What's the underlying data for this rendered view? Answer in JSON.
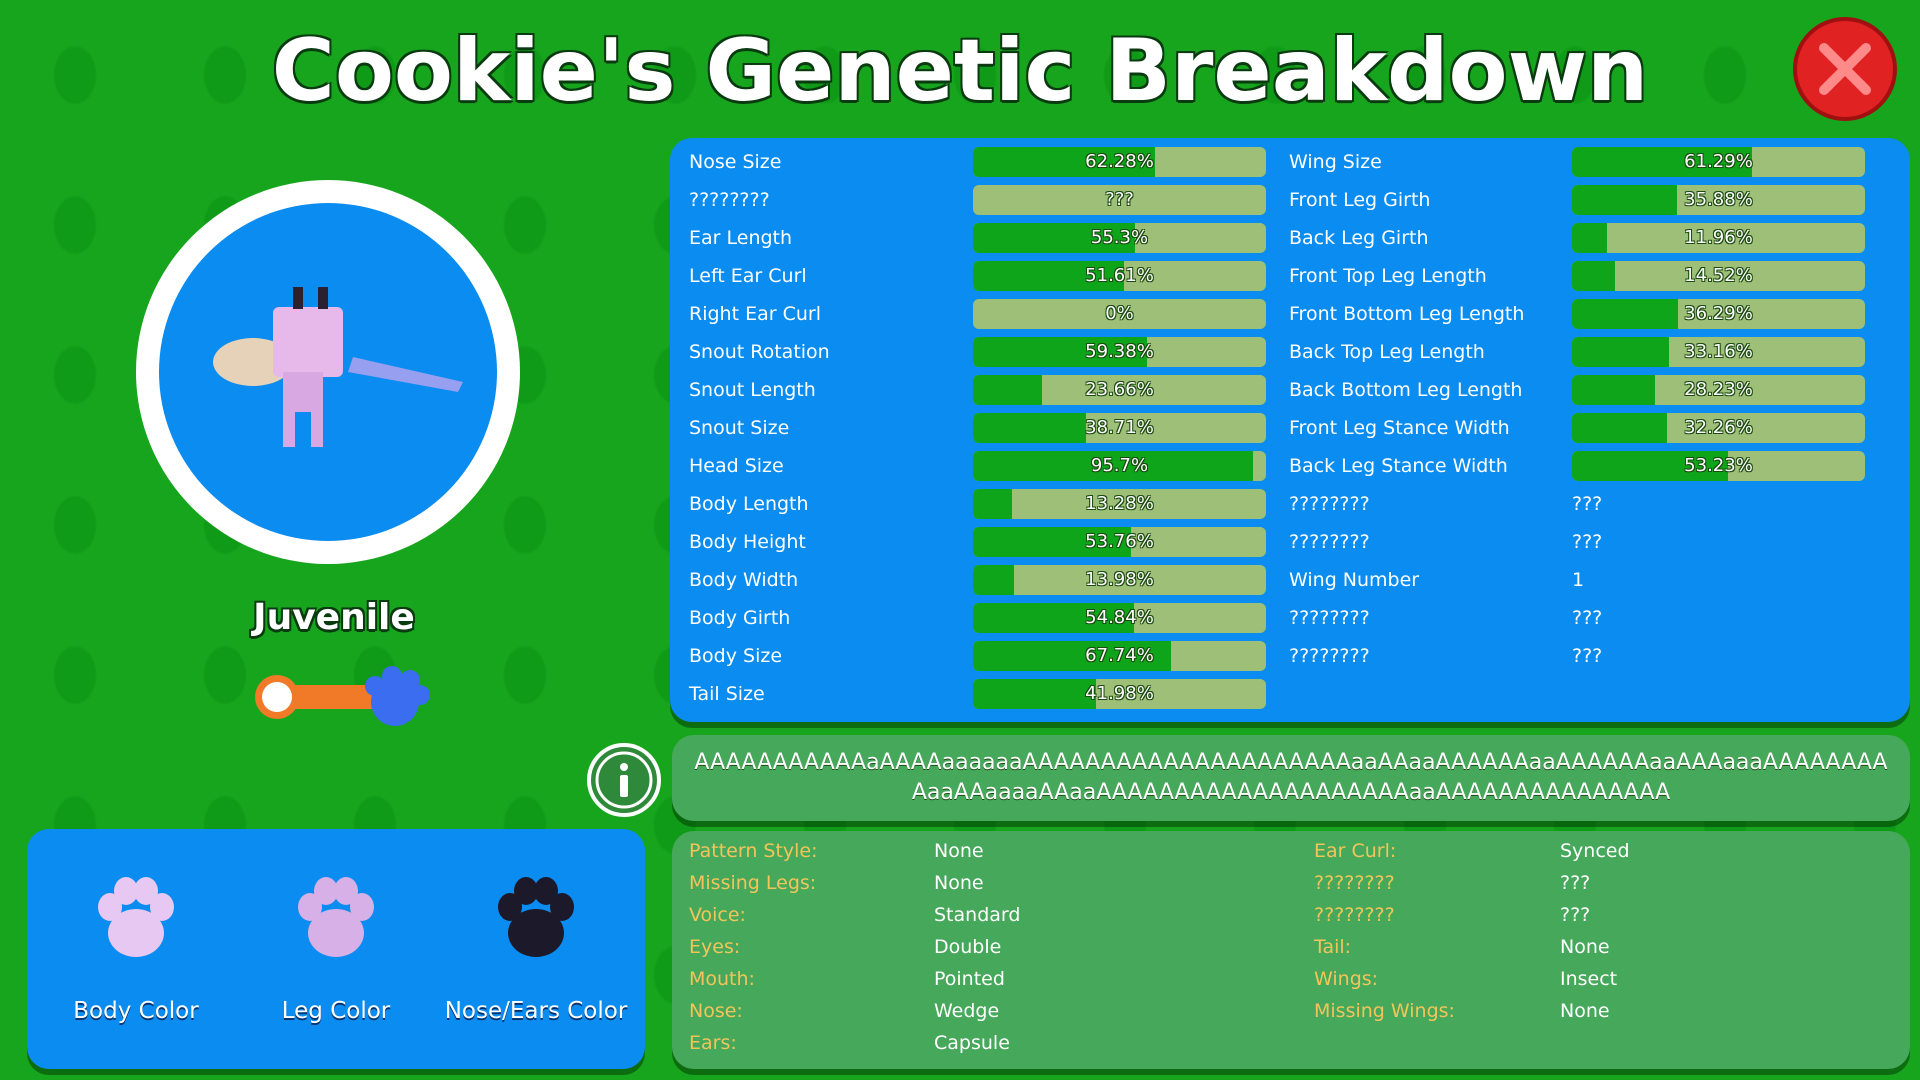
{
  "header": {
    "title": "Cookie's Genetic Breakdown"
  },
  "pet": {
    "age": "Juvenile"
  },
  "colors": [
    {
      "label": "Body Color",
      "color": "#e6c8f2"
    },
    {
      "label": "Leg Color",
      "color": "#d6b0e6"
    },
    {
      "label": "Nose/Ears Color",
      "color": "#1c1a2a"
    }
  ],
  "stats": {
    "left": [
      {
        "name": "Nose Size",
        "value": 62.28,
        "label": "62.28%"
      },
      {
        "name": "????????",
        "value": null,
        "label": "???"
      },
      {
        "name": "Ear Length",
        "value": 55.3,
        "label": "55.3%"
      },
      {
        "name": "Left Ear Curl",
        "value": 51.61,
        "label": "51.61%"
      },
      {
        "name": "Right Ear Curl",
        "value": 0,
        "label": "0%"
      },
      {
        "name": "Snout Rotation",
        "value": 59.38,
        "label": "59.38%"
      },
      {
        "name": "Snout Length",
        "value": 23.66,
        "label": "23.66%"
      },
      {
        "name": "Snout Size",
        "value": 38.71,
        "label": "38.71%"
      },
      {
        "name": "Head Size",
        "value": 95.7,
        "label": "95.7%"
      },
      {
        "name": "Body Length",
        "value": 13.28,
        "label": "13.28%"
      },
      {
        "name": "Body Height",
        "value": 53.76,
        "label": "53.76%"
      },
      {
        "name": "Body Width",
        "value": 13.98,
        "label": "13.98%"
      },
      {
        "name": "Body Girth",
        "value": 54.84,
        "label": "54.84%"
      },
      {
        "name": "Body Size",
        "value": 67.74,
        "label": "67.74%"
      },
      {
        "name": "Tail Size",
        "value": 41.98,
        "label": "41.98%"
      }
    ],
    "right": [
      {
        "name": "Wing Size",
        "value": 61.29,
        "label": "61.29%"
      },
      {
        "name": "Front Leg Girth",
        "value": 35.88,
        "label": "35.88%"
      },
      {
        "name": "Back Leg Girth",
        "value": 11.96,
        "label": "11.96%"
      },
      {
        "name": "Front Top Leg Length",
        "value": 14.52,
        "label": "14.52%"
      },
      {
        "name": "Front Bottom Leg Length",
        "value": 36.29,
        "label": "36.29%"
      },
      {
        "name": "Back Top Leg Length",
        "value": 33.16,
        "label": "33.16%"
      },
      {
        "name": "Back Bottom Leg Length",
        "value": 28.23,
        "label": "28.23%"
      },
      {
        "name": "Front Leg Stance Width",
        "value": 32.26,
        "label": "32.26%"
      },
      {
        "name": "Back Leg Stance Width",
        "value": 53.23,
        "label": "53.23%"
      },
      {
        "name": "????????",
        "text": "???"
      },
      {
        "name": "????????",
        "text": "???"
      },
      {
        "name": "Wing Number",
        "text": 1
      },
      {
        "name": "????????",
        "text": "???"
      },
      {
        "name": "????????",
        "text": "???"
      }
    ]
  },
  "sequence": "AAAAAAAAAAAaAAAAaaaaaaAAAAAAAAAAAAAAAAAAAAAaaAAaaAAAAAAaaAAAAAAaaAAAaaaAAAAAAAAAaaAAaaaaAAaaAAAAAAAAAAAAAAAAAAAAaaAAAAAAAAAAAAAAA",
  "traits": {
    "left": [
      {
        "name": "Pattern Style:",
        "value": "None"
      },
      {
        "name": "Missing Legs:",
        "value": "None"
      },
      {
        "name": "Voice:",
        "value": "Standard"
      },
      {
        "name": "Eyes:",
        "value": "Double"
      },
      {
        "name": "Mouth:",
        "value": "Pointed"
      },
      {
        "name": "Nose:",
        "value": "Wedge"
      },
      {
        "name": "Ears:",
        "value": "Capsule"
      }
    ],
    "right": [
      {
        "name": "Ear Curl:",
        "value": "Synced"
      },
      {
        "name": "????????",
        "value": "???"
      },
      {
        "name": "????????",
        "value": "???"
      },
      {
        "name": "Tail:",
        "value": "None"
      },
      {
        "name": "Wings:",
        "value": "Insect"
      },
      {
        "name": "Missing Wings:",
        "value": "None"
      }
    ]
  }
}
